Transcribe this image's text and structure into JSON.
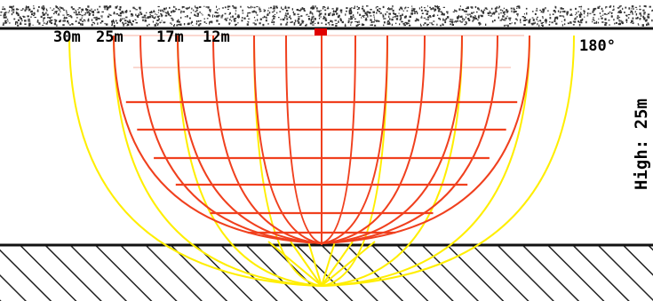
{
  "radius_labels": [
    "30m",
    "25m",
    "17m",
    "12m"
  ],
  "angle_label": "180°",
  "height_label": "High: 25m",
  "colors": {
    "grid_lines": "#f0401e",
    "coverage_arcs": "#ffee00",
    "device_marker": "#e00000",
    "ceiling": "#222222",
    "ground_hatch": "#222222"
  }
}
